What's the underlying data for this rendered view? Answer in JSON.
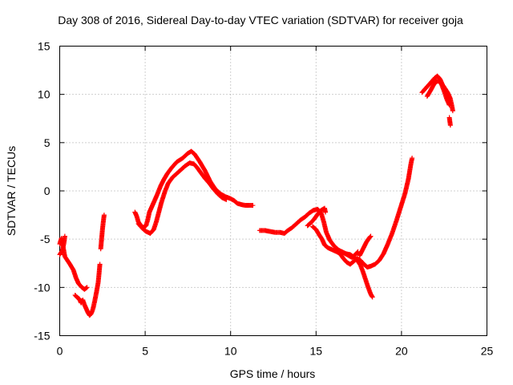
{
  "chart_data": {
    "type": "scatter",
    "title": "Day 308 of 2016, Sidereal Day-to-day VTEC variation (SDTVAR) for receiver goja",
    "xlabel": "GPS time / hours",
    "ylabel": "SDTVAR / TECUs",
    "xlim": [
      0,
      25
    ],
    "ylim": [
      -15,
      15
    ],
    "xticks": [
      0,
      5,
      10,
      15,
      20,
      25
    ],
    "yticks": [
      -15,
      -10,
      -5,
      0,
      5,
      10,
      15
    ],
    "xtick_labels": [
      "0",
      "5",
      "10",
      "15",
      "20",
      "25"
    ],
    "ytick_labels": [
      "-15",
      "-10",
      "-5",
      "0",
      "5",
      "10",
      "15"
    ],
    "grid": true,
    "marker": "+",
    "series": [
      {
        "name": "SDTVAR",
        "color": "#ff0000",
        "segments": [
          [
            [
              0.0,
              -5.5
            ],
            [
              0.1,
              -4.9
            ],
            [
              0.2,
              -5.8
            ],
            [
              0.3,
              -6.8
            ],
            [
              0.45,
              -7.2
            ],
            [
              0.6,
              -7.6
            ],
            [
              0.8,
              -8.2
            ],
            [
              0.95,
              -9.0
            ],
            [
              1.1,
              -9.6
            ],
            [
              1.3,
              -10.0
            ],
            [
              1.45,
              -10.2
            ],
            [
              1.6,
              -10.0
            ]
          ],
          [
            [
              0.0,
              -6.6
            ],
            [
              0.15,
              -6.2
            ],
            [
              0.25,
              -5.4
            ],
            [
              0.3,
              -4.7
            ]
          ],
          [
            [
              0.9,
              -10.8
            ],
            [
              1.0,
              -11.0
            ],
            [
              1.15,
              -11.2
            ],
            [
              1.25,
              -11.6
            ],
            [
              1.35,
              -11.3
            ],
            [
              1.45,
              -11.8
            ],
            [
              1.55,
              -12.2
            ],
            [
              1.65,
              -12.6
            ],
            [
              1.75,
              -12.9
            ],
            [
              1.85,
              -12.7
            ],
            [
              1.95,
              -12.2
            ],
            [
              2.05,
              -11.4
            ],
            [
              2.15,
              -10.5
            ],
            [
              2.25,
              -9.5
            ],
            [
              2.3,
              -8.6
            ],
            [
              2.35,
              -7.6
            ]
          ],
          [
            [
              2.4,
              -6.0
            ],
            [
              2.45,
              -5.0
            ],
            [
              2.5,
              -4.0
            ],
            [
              2.55,
              -3.2
            ],
            [
              2.6,
              -2.5
            ]
          ],
          [
            [
              4.4,
              -2.2
            ],
            [
              4.5,
              -2.6
            ],
            [
              4.6,
              -3.2
            ],
            [
              4.75,
              -3.6
            ],
            [
              4.9,
              -3.8
            ],
            [
              5.05,
              -3.6
            ],
            [
              5.15,
              -3.0
            ],
            [
              5.25,
              -2.2
            ],
            [
              5.35,
              -1.8
            ],
            [
              5.5,
              -1.2
            ],
            [
              5.7,
              -0.4
            ],
            [
              5.9,
              0.5
            ],
            [
              6.1,
              1.2
            ],
            [
              6.3,
              1.8
            ],
            [
              6.55,
              2.4
            ],
            [
              6.85,
              3.0
            ],
            [
              7.2,
              3.4
            ],
            [
              7.5,
              3.9
            ],
            [
              7.7,
              4.1
            ],
            [
              7.9,
              3.8
            ],
            [
              8.2,
              3.0
            ],
            [
              8.5,
              2.1
            ],
            [
              8.8,
              1.0
            ],
            [
              9.1,
              0.2
            ],
            [
              9.4,
              -0.3
            ],
            [
              9.7,
              -0.6
            ],
            [
              10.0,
              -0.8
            ],
            [
              10.2,
              -1.0
            ],
            [
              10.4,
              -1.3
            ],
            [
              10.6,
              -1.4
            ],
            [
              10.85,
              -1.5
            ],
            [
              11.1,
              -1.5
            ],
            [
              11.3,
              -1.5
            ]
          ],
          [
            [
              4.6,
              -3.4
            ],
            [
              4.85,
              -3.9
            ],
            [
              5.05,
              -4.2
            ],
            [
              5.3,
              -4.4
            ],
            [
              5.5,
              -4.0
            ],
            [
              5.65,
              -3.2
            ],
            [
              5.8,
              -2.2
            ],
            [
              5.95,
              -1.2
            ],
            [
              6.15,
              -0.1
            ],
            [
              6.35,
              0.8
            ],
            [
              6.6,
              1.4
            ],
            [
              6.85,
              1.8
            ],
            [
              7.1,
              2.2
            ],
            [
              7.35,
              2.6
            ],
            [
              7.6,
              2.9
            ],
            [
              7.85,
              2.8
            ],
            [
              8.05,
              2.4
            ],
            [
              8.25,
              1.9
            ],
            [
              8.5,
              1.3
            ],
            [
              8.75,
              0.8
            ],
            [
              9.0,
              0.2
            ],
            [
              9.25,
              -0.3
            ],
            [
              9.5,
              -0.7
            ],
            [
              9.75,
              -0.9
            ]
          ],
          [
            [
              11.7,
              -4.1
            ],
            [
              12.0,
              -4.1
            ],
            [
              12.3,
              -4.2
            ],
            [
              12.6,
              -4.3
            ],
            [
              12.9,
              -4.3
            ],
            [
              13.15,
              -4.4
            ],
            [
              13.35,
              -4.1
            ],
            [
              13.6,
              -3.8
            ],
            [
              13.85,
              -3.4
            ],
            [
              14.1,
              -3.0
            ],
            [
              14.35,
              -2.7
            ],
            [
              14.6,
              -2.3
            ],
            [
              14.85,
              -2.0
            ],
            [
              15.1,
              -1.9
            ],
            [
              15.3,
              -2.3
            ],
            [
              15.45,
              -3.2
            ],
            [
              15.6,
              -4.3
            ],
            [
              15.8,
              -5.1
            ],
            [
              16.05,
              -5.7
            ],
            [
              16.3,
              -6.1
            ],
            [
              16.6,
              -6.4
            ],
            [
              16.9,
              -6.7
            ],
            [
              17.1,
              -6.9
            ],
            [
              17.3,
              -6.6
            ],
            [
              17.45,
              -6.3
            ]
          ],
          [
            [
              14.8,
              -3.7
            ],
            [
              15.0,
              -4.0
            ],
            [
              15.2,
              -4.6
            ],
            [
              15.35,
              -5.0
            ],
            [
              15.5,
              -5.6
            ],
            [
              15.7,
              -5.9
            ],
            [
              15.95,
              -6.1
            ],
            [
              16.2,
              -6.3
            ],
            [
              16.4,
              -6.5
            ],
            [
              16.6,
              -7.0
            ],
            [
              16.8,
              -7.4
            ],
            [
              17.0,
              -7.6
            ],
            [
              17.2,
              -7.3
            ],
            [
              17.4,
              -7.0
            ],
            [
              17.6,
              -7.2
            ],
            [
              17.8,
              -7.6
            ],
            [
              18.0,
              -7.9
            ],
            [
              18.2,
              -7.8
            ],
            [
              18.45,
              -7.6
            ],
            [
              18.7,
              -7.2
            ],
            [
              18.95,
              -6.5
            ],
            [
              19.2,
              -5.5
            ],
            [
              19.45,
              -4.4
            ],
            [
              19.7,
              -3.1
            ],
            [
              19.95,
              -1.7
            ],
            [
              20.2,
              -0.3
            ],
            [
              20.4,
              1.2
            ],
            [
              20.55,
              2.8
            ],
            [
              20.62,
              3.4
            ]
          ],
          [
            [
              14.5,
              -3.6
            ],
            [
              14.7,
              -3.3
            ],
            [
              14.9,
              -2.9
            ],
            [
              15.1,
              -2.4
            ],
            [
              15.3,
              -2.0
            ],
            [
              15.5,
              -1.8
            ],
            [
              15.55,
              -2.2
            ]
          ],
          [
            [
              16.5,
              -6.3
            ],
            [
              16.75,
              -6.5
            ],
            [
              17.0,
              -6.6
            ],
            [
              17.25,
              -6.9
            ],
            [
              17.45,
              -7.3
            ],
            [
              17.6,
              -7.7
            ],
            [
              17.75,
              -8.4
            ],
            [
              17.9,
              -9.2
            ],
            [
              18.05,
              -10.0
            ],
            [
              18.2,
              -10.7
            ],
            [
              18.3,
              -11.0
            ]
          ],
          [
            [
              17.55,
              -6.7
            ],
            [
              17.75,
              -6.0
            ],
            [
              17.95,
              -5.3
            ],
            [
              18.1,
              -4.9
            ],
            [
              18.2,
              -4.7
            ]
          ],
          [
            [
              21.2,
              10.2
            ],
            [
              21.4,
              10.6
            ],
            [
              21.6,
              11.0
            ],
            [
              21.8,
              11.4
            ],
            [
              21.95,
              11.7
            ],
            [
              22.1,
              11.9
            ],
            [
              22.25,
              11.6
            ],
            [
              22.4,
              11.0
            ],
            [
              22.55,
              10.6
            ],
            [
              22.7,
              10.2
            ],
            [
              22.85,
              9.6
            ],
            [
              22.95,
              8.8
            ],
            [
              23.0,
              8.3
            ]
          ],
          [
            [
              21.5,
              9.8
            ],
            [
              21.7,
              10.4
            ],
            [
              21.85,
              10.9
            ],
            [
              22.0,
              11.3
            ],
            [
              22.2,
              11.4
            ],
            [
              22.35,
              11.0
            ],
            [
              22.5,
              10.3
            ],
            [
              22.65,
              9.5
            ],
            [
              22.8,
              8.9
            ]
          ],
          [
            [
              22.8,
              7.6
            ],
            [
              22.83,
              7.2
            ],
            [
              22.86,
              6.8
            ]
          ]
        ]
      }
    ]
  }
}
